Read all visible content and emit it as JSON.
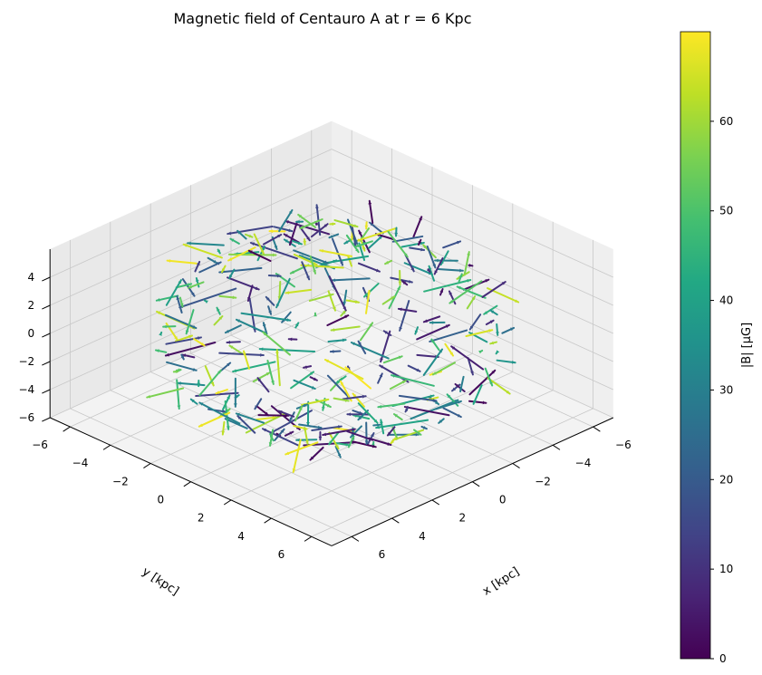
{
  "chart_data": {
    "type": "3d-quiver",
    "title": "Magnetic field of Centauro A at r = 6 Kpc",
    "xlabel": "x [kpc]",
    "ylabel": "y [kpc]",
    "zlabel": "",
    "xlim": [
      -7,
      7
    ],
    "ylim": [
      -7,
      7
    ],
    "zlim": [
      -6,
      6
    ],
    "x_ticks": [
      "−6",
      "−4",
      "−2",
      "0",
      "2",
      "4",
      "6"
    ],
    "y_ticks": [
      "−6",
      "−4",
      "−2",
      "0",
      "2",
      "4",
      "6"
    ],
    "z_ticks": [
      "−6",
      "−4",
      "−2",
      "0",
      "2",
      "4"
    ],
    "sphere_radius_kpc": 6,
    "grid": true,
    "colormap": "viridis",
    "colorbar": {
      "label": "|B| [µG]",
      "range": [
        0,
        70
      ],
      "ticks": [
        "0",
        "10",
        "20",
        "30",
        "40",
        "50",
        "60"
      ]
    }
  }
}
